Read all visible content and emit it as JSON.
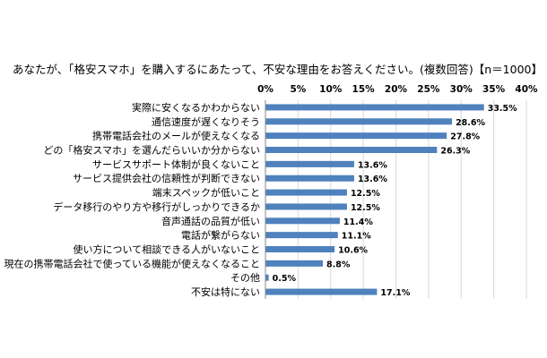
{
  "chart_data": {
    "type": "bar",
    "orientation": "horizontal",
    "title": "あなたが、「格安スマホ」を購入するにあたって、不安な理由をお答えください。(複数回答)【n＝1000】",
    "xlim": [
      0,
      40
    ],
    "xticks": [
      "0%",
      "5%",
      "10%",
      "15%",
      "20%",
      "25%",
      "30%",
      "35%",
      "40%"
    ],
    "tick_values": [
      0,
      5,
      10,
      15,
      20,
      25,
      30,
      35,
      40
    ],
    "grid": true,
    "bar_color": "#4f81bd",
    "categories": [
      "実際に安くなるかわからない",
      "通信速度が遅くなりそう",
      "携帯電話会社のメールが使えなくなる",
      "どの「格安スマホ」を選んだらいいか分からない",
      "サービスサポート体制が良くないこと",
      "サービス提供会社の信頼性が判断できない",
      "端末スペックが低いこと",
      "データ移行のやり方や移行がしっかりできるか",
      "音声通話の品質が低い",
      "電話が繋がらない",
      "使い方について相談できる人がいないこと",
      "現在の携帯電話会社で使っている機能が使えなくなること",
      "その他",
      "不安は特にない"
    ],
    "values": [
      33.5,
      28.6,
      27.8,
      26.3,
      13.6,
      13.6,
      12.5,
      12.5,
      11.4,
      11.1,
      10.6,
      8.8,
      0.5,
      17.1
    ],
    "value_labels": [
      "33.5%",
      "28.6%",
      "27.8%",
      "26.3%",
      "13.6%",
      "13.6%",
      "12.5%",
      "12.5%",
      "11.4%",
      "11.1%",
      "10.6%",
      "8.8%",
      "0.5%",
      "17.1%"
    ]
  }
}
